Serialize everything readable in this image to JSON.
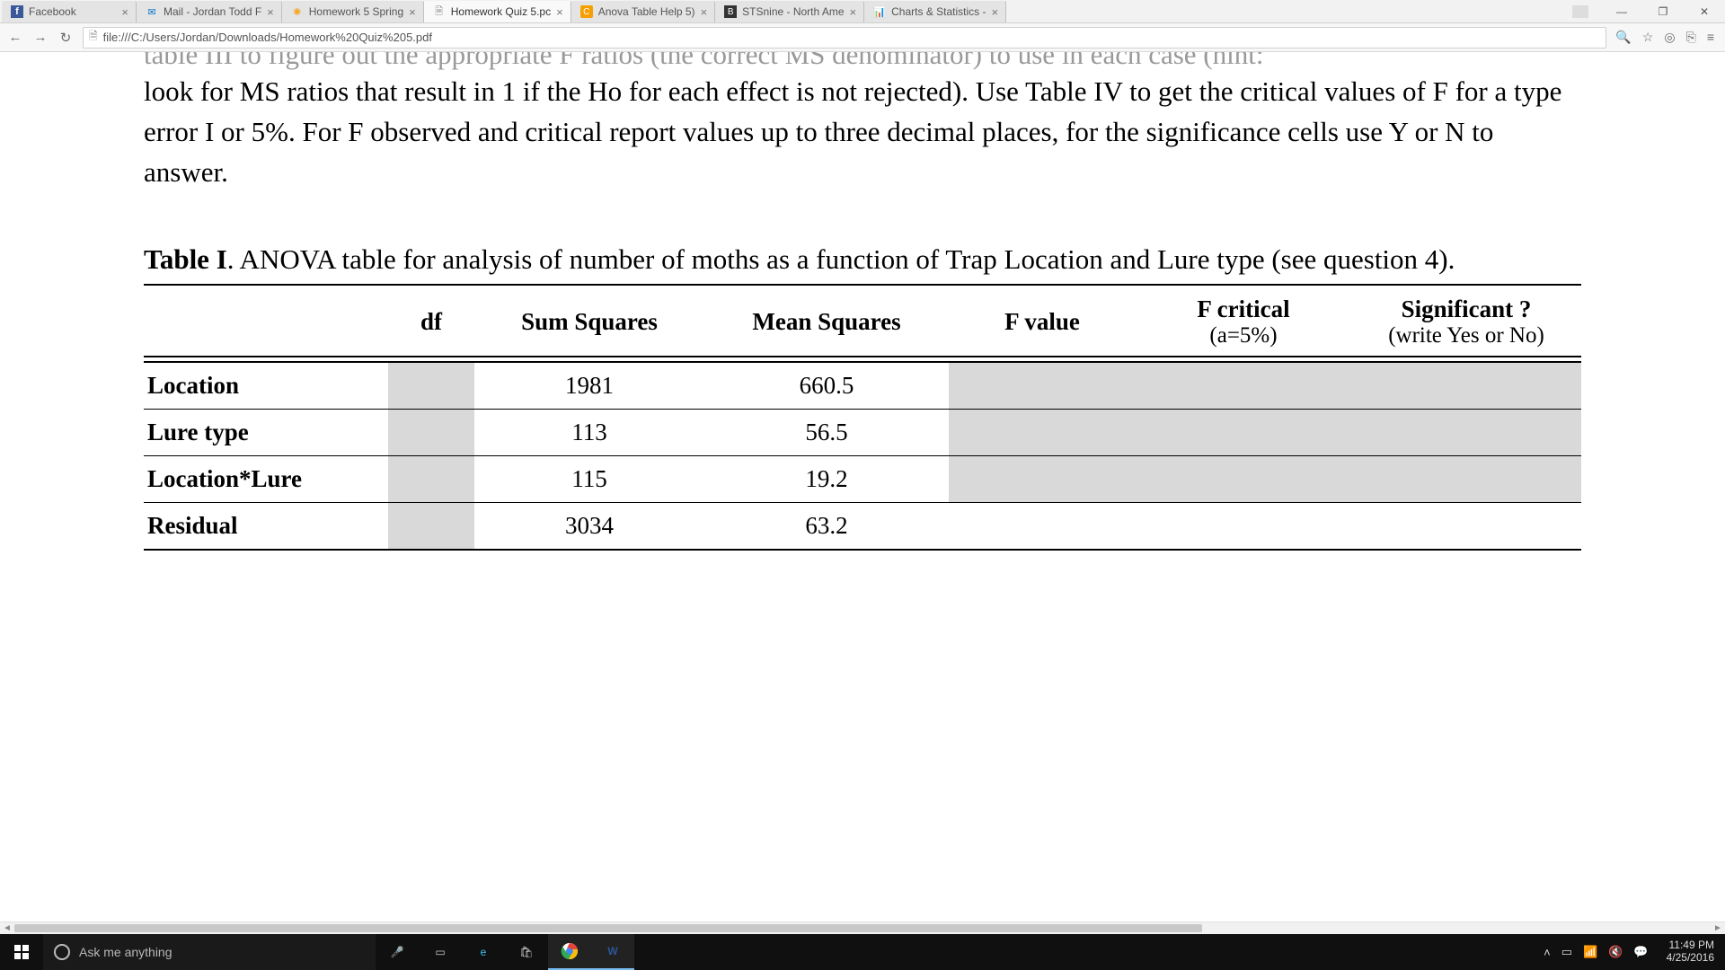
{
  "window": {
    "minimize": "—",
    "maximize": "❐",
    "close": "✕"
  },
  "tabs": [
    {
      "title": "Facebook",
      "favicon": "f",
      "faviClass": "fb-icon"
    },
    {
      "title": "Mail - Jordan Todd F",
      "favicon": "✉",
      "faviClass": "mail-icon"
    },
    {
      "title": "Homework 5 Spring",
      "favicon": "✺",
      "faviClass": "sun-icon"
    },
    {
      "title": "Homework Quiz 5.pc",
      "favicon": "🗎",
      "faviClass": "doc-icon",
      "active": true
    },
    {
      "title": "Anova Table Help 5)",
      "favicon": "C",
      "faviClass": "c-icon"
    },
    {
      "title": "STSnine - North Ame",
      "favicon": "B",
      "faviClass": "b-icon"
    },
    {
      "title": "Charts & Statistics -",
      "favicon": "📊",
      "faviClass": "chart-icon"
    }
  ],
  "address": {
    "url": "file:///C:/Users/Jordan/Downloads/Homework%20Quiz%205.pdf"
  },
  "pdf": {
    "cut_text": "table III to figure out the appropriate F ratios (the correct MS denominator) to use in each case (hint:",
    "para": "look for MS ratios that result in 1 if the Ho for each effect is not rejected). Use Table IV to get the critical values of F for a type error I or 5%. For F observed and critical report values up to three decimal places, for the significance cells use Y or N to answer.",
    "caption_bold": "Table I",
    "caption_rest": ". ANOVA table for analysis of number of moths as a function of Trap Location and Lure type (see question 4).",
    "table": {
      "headers": {
        "c0": "",
        "c1": "df",
        "c2": "Sum Squares",
        "c3": "Mean Squares",
        "c4": "F value",
        "c5": "F critical",
        "c5_sub": "(a=5%)",
        "c6": "Significant ?",
        "c6_sub": "(write Yes or No)"
      },
      "rows": [
        {
          "label": "Location",
          "ss": "1981",
          "ms": "660.5",
          "grey_df": true,
          "grey_tail": true
        },
        {
          "label": "Lure type",
          "ss": "113",
          "ms": "56.5",
          "grey_df": true,
          "grey_tail": true
        },
        {
          "label": "Location*Lure",
          "ss": "115",
          "ms": "19.2",
          "grey_df": true,
          "grey_tail": true
        },
        {
          "label": "Residual",
          "ss": "3034",
          "ms": "63.2",
          "grey_df": true,
          "grey_tail": false
        }
      ]
    }
  },
  "taskbar": {
    "search_placeholder": "Ask me anything",
    "time": "11:49 PM",
    "date": "4/25/2016"
  }
}
